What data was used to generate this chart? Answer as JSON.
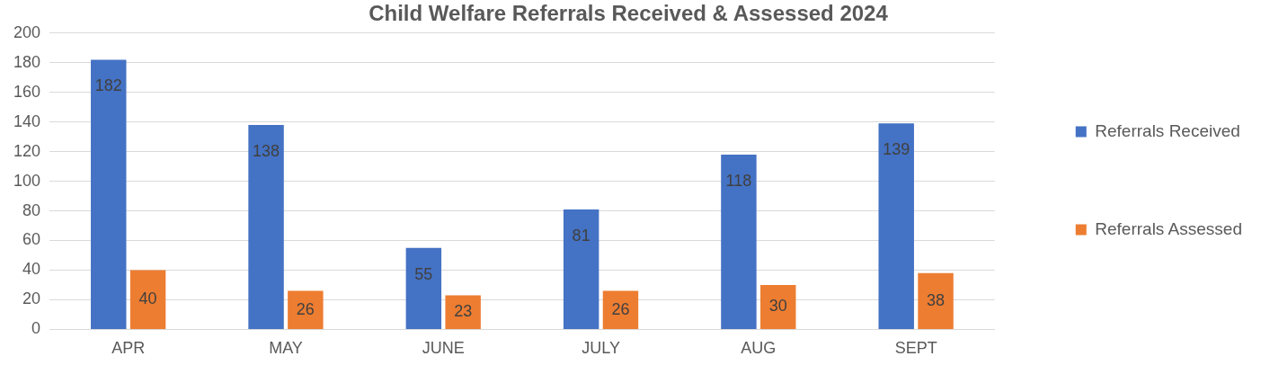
{
  "chart_data": {
    "type": "bar",
    "title": "Child Welfare Referrals Received & Assessed 2024",
    "categories": [
      "APR",
      "MAY",
      "JUNE",
      "JULY",
      "AUG",
      "SEPT"
    ],
    "series": [
      {
        "name": "Referrals Received",
        "color": "#4472c4",
        "values": [
          182,
          138,
          55,
          81,
          118,
          139
        ]
      },
      {
        "name": "Referrals Assessed",
        "color": "#ed7d31",
        "values": [
          40,
          26,
          23,
          26,
          30,
          38
        ]
      }
    ],
    "ylim": [
      0,
      200
    ],
    "yticks": [
      0,
      20,
      40,
      60,
      80,
      100,
      120,
      140,
      160,
      180,
      200
    ],
    "grid": "y",
    "legend": "right",
    "data_labels": true
  }
}
